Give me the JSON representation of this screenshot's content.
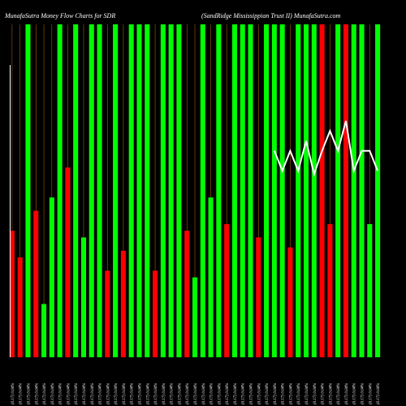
{
  "header": {
    "left_title": "MunafaSutra  Money Flow  Charts for SDR",
    "right_title": "(SandRidge  Mississippian  Trust II) MunafaSutra.com"
  },
  "colors": {
    "background": "#000000",
    "up": "#00ff00",
    "down": "#ff0000",
    "gridline": "#ff9900",
    "price_line": "#ffffff",
    "text": "#ffffff"
  },
  "chart_data": {
    "type": "bar",
    "title": "MunafaSutra  Money Flow  Charts for SDR",
    "subtitle": "(SandRidge  Mississippian  Trust II) MunafaSutra.com",
    "categories": [
      "(0.17) 0.04%",
      "(0.17) 0.04%",
      "(0.17) 0.04%",
      "(0.17) 0.04%",
      "(0.17) 0.04%",
      "(0.17) 0.04%",
      "(0.17) 0.04%",
      "(0.17) 0.04%",
      "(0.17) 0.04%",
      "(0.17) 0.04%",
      "(0.17) 0.04%",
      "(0.17) 0.04%",
      "(0.17) 0.04%",
      "(0.17) 0.04%",
      "(0.17) 0.04%",
      "(0.17) 0.04%",
      "(0.17) 0.04%",
      "(0.17) 0.04%",
      "(0.17) 0.04%",
      "(0.17) 0.04%",
      "(0.17) 0.04%",
      "(0.17) 0.04%",
      "(0.17) 0.04%",
      "(0.17) 0.04%",
      "(0.17) 0.04%",
      "(0.17) 0.04%",
      "(0.17) 0.04%",
      "(0.17) 0.04%",
      "(0.17) 0.04%",
      "(0.17) 0.04%",
      "(0.17) 0.04%",
      "(0.17) 0.04%",
      "(0.17) 0.04%",
      "(0.17) 0.04%",
      "(0.17) 0.04%",
      "(0.17) 0.04%",
      "(0.17) 0.04%",
      "(0.17) 0.04%",
      "(0.17) 0.04%",
      "(0.17) 0.04%",
      "(0.17) 0.04%",
      "(0.17) 0.04%",
      "(0.17) 0.04%",
      "(0.17) 0.04%",
      "(0.17) 0.04%",
      "(0.17) 0.04%",
      "(0.17) 0.04%"
    ],
    "values": [
      38,
      30,
      100,
      44,
      16,
      48,
      100,
      57,
      100,
      36,
      100,
      100,
      26,
      100,
      32,
      100,
      100,
      100,
      26,
      100,
      100,
      100,
      38,
      24,
      100,
      48,
      100,
      40,
      100,
      100,
      100,
      36,
      100,
      100,
      100,
      33,
      100,
      100,
      100,
      100,
      40,
      100,
      100,
      100,
      100,
      40,
      100
    ],
    "directions": [
      "down",
      "down",
      "up",
      "down",
      "up",
      "up",
      "up",
      "down",
      "up",
      "up",
      "up",
      "up",
      "down",
      "up",
      "down",
      "up",
      "up",
      "up",
      "down",
      "up",
      "up",
      "up",
      "down",
      "up",
      "up",
      "up",
      "up",
      "down",
      "up",
      "up",
      "up",
      "down",
      "up",
      "up",
      "up",
      "down",
      "up",
      "up",
      "up",
      "down",
      "down",
      "up",
      "down",
      "up",
      "up",
      "up",
      "up"
    ],
    "ylim": [
      0,
      100
    ],
    "grid": true,
    "price_line": {
      "start_index": 33,
      "values": [
        62,
        56,
        62,
        56,
        65,
        55,
        62,
        68,
        62,
        71,
        56,
        62,
        62,
        56
      ]
    }
  }
}
